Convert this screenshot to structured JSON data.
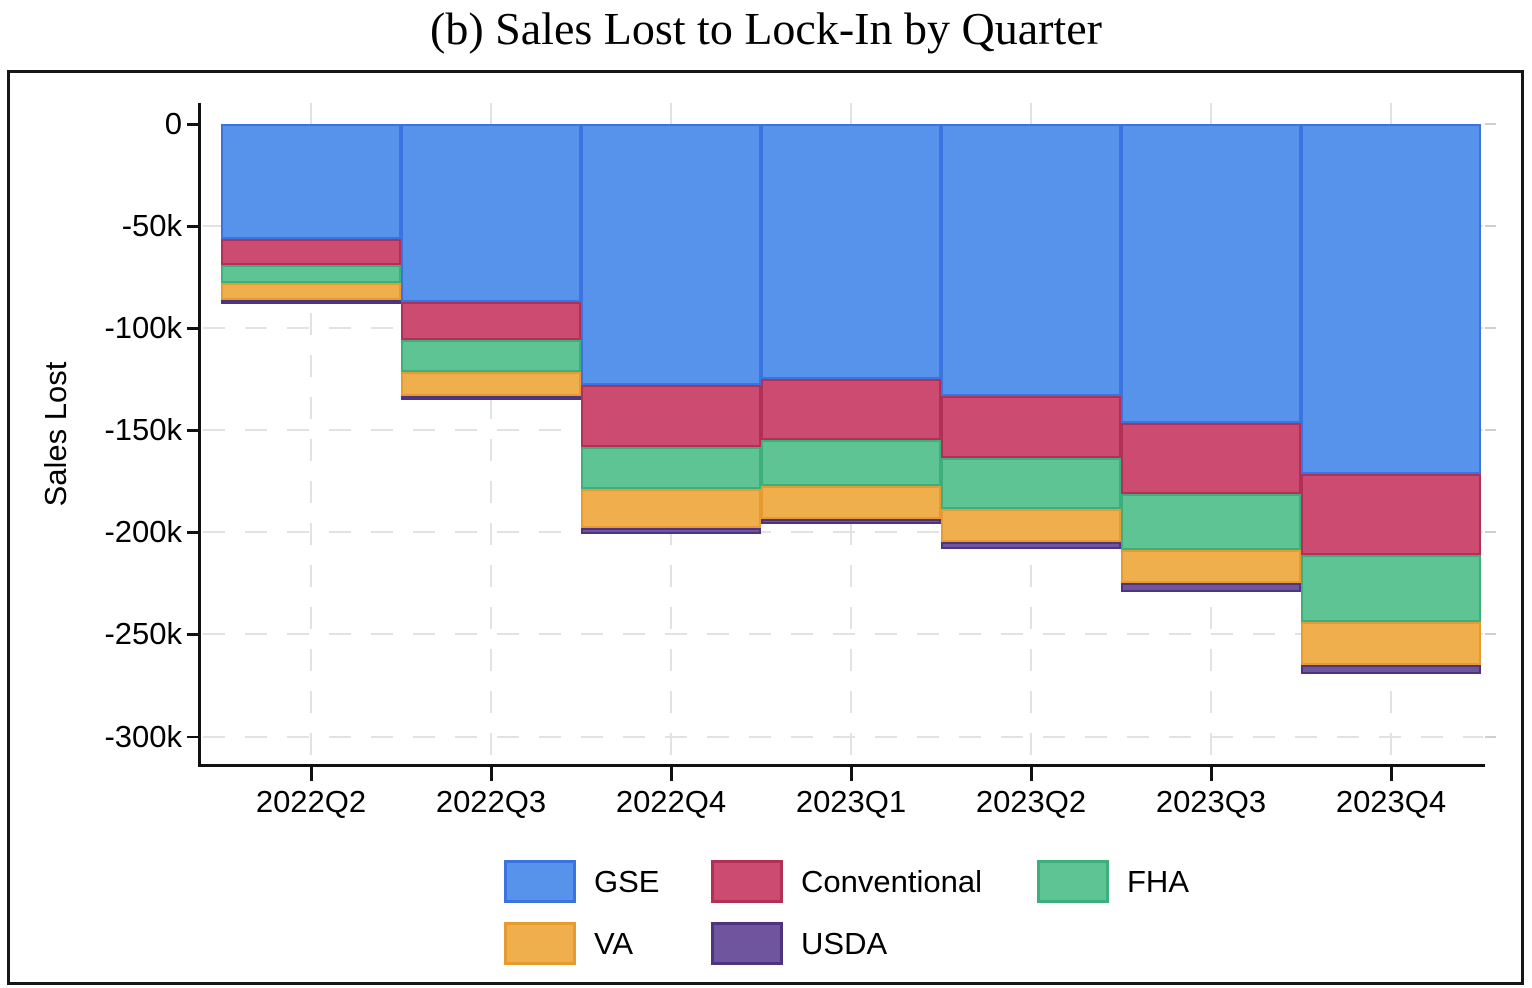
{
  "title": "(b) Sales Lost to Lock-In by Quarter",
  "chart_data": {
    "type": "bar",
    "stacked": true,
    "direction": "negative (bars extend downward from 0)",
    "title": "(b) Sales Lost to Lock-In by Quarter",
    "xlabel": "",
    "ylabel": "Sales Lost",
    "categories": [
      "2022Q2",
      "2022Q3",
      "2022Q4",
      "2023Q1",
      "2023Q2",
      "2023Q3",
      "2023Q4"
    ],
    "series": [
      {
        "name": "GSE",
        "color": "#5792EB",
        "border_color": "#3B74E0",
        "values": [
          -56500,
          -87000,
          -128000,
          -125000,
          -133000,
          -146500,
          -171500
        ]
      },
      {
        "name": "Conventional",
        "color": "#CC4B70",
        "border_color": "#B23055",
        "values": [
          -12500,
          -19000,
          -30000,
          -30000,
          -30500,
          -34500,
          -39500
        ]
      },
      {
        "name": "FHA",
        "color": "#5FC494",
        "border_color": "#3DAF7C",
        "values": [
          -9000,
          -15500,
          -21000,
          -22500,
          -25000,
          -27500,
          -33000
        ]
      },
      {
        "name": "VA",
        "color": "#F0AF4D",
        "border_color": "#E69A2F",
        "values": [
          -8000,
          -11500,
          -19000,
          -16000,
          -16000,
          -16500,
          -21000
        ]
      },
      {
        "name": "USDA",
        "color": "#6F549E",
        "border_color": "#4E337F",
        "values": [
          -1500,
          -2000,
          -3000,
          -2500,
          -3500,
          -4000,
          -4500
        ]
      }
    ],
    "stack_totals": [
      -87500,
      -135000,
      -201000,
      -196000,
      -208000,
      -229000,
      -269500
    ],
    "y_ticks": [
      {
        "value": 0,
        "label": "0"
      },
      {
        "value": -50000,
        "label": "-50k"
      },
      {
        "value": -100000,
        "label": "-100k"
      },
      {
        "value": -150000,
        "label": "-150k"
      },
      {
        "value": -200000,
        "label": "-200k"
      },
      {
        "value": -250000,
        "label": "-250k"
      },
      {
        "value": -300000,
        "label": "-300k"
      }
    ],
    "ylim": [
      -320000,
      0
    ],
    "grid": "dashed light-gray horizontal lines at each y tick and vertical lines at each category center",
    "legend": {
      "position": "bottom-center, two rows",
      "rows": [
        [
          "GSE",
          "Conventional",
          "FHA"
        ],
        [
          "VA",
          "USDA"
        ]
      ]
    }
  }
}
